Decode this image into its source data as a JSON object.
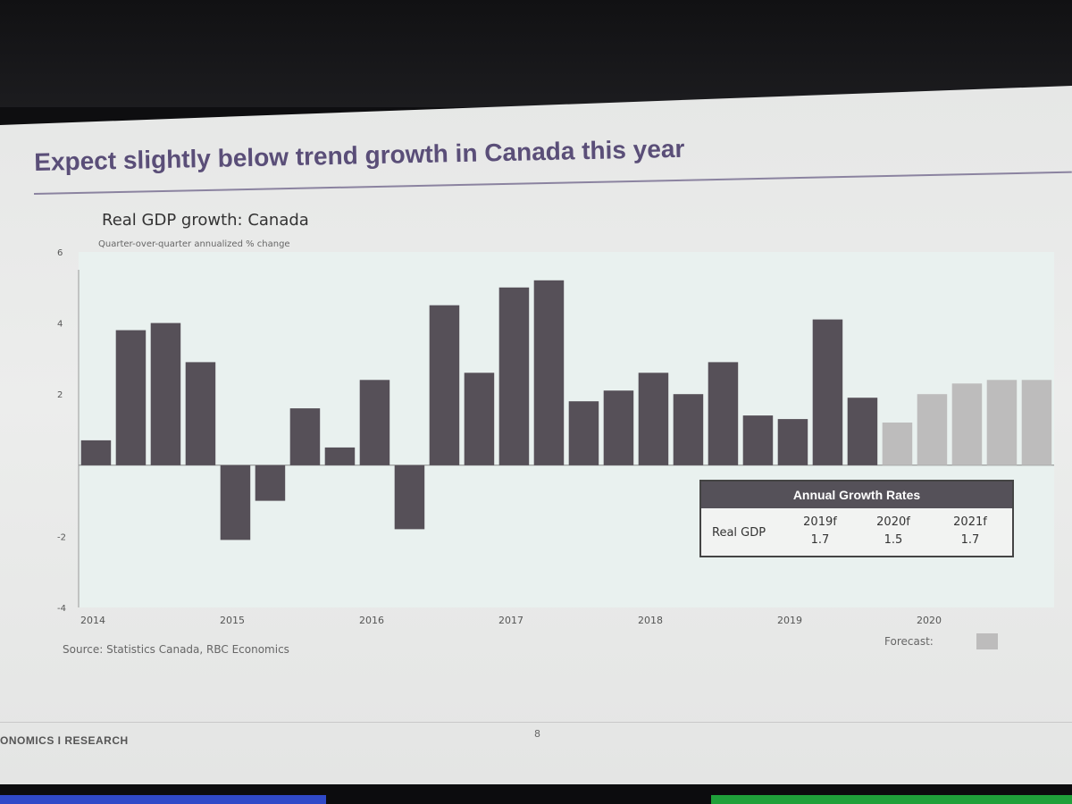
{
  "slide": {
    "title": "Expect slightly below trend growth in Canada this year",
    "source": "Source: Statistics Canada, RBC Economics",
    "forecast_label": "Forecast:",
    "footer_brand": "ONOMICS  I  RESEARCH",
    "page_number": "8"
  },
  "colors": {
    "actual": "#565058",
    "forecast": "#bdbcbc",
    "plot_bg": "#e9f1ef",
    "title": "#5a4e78"
  },
  "table": {
    "title": "Annual Growth Rates",
    "row_label": "Real GDP",
    "years": [
      "2019f",
      "2020f",
      "2021f"
    ],
    "values": [
      "1.7",
      "1.5",
      "1.7"
    ]
  },
  "chart_data": {
    "type": "bar",
    "title": "Real GDP growth: Canada",
    "subtitle": "Quarter-over-quarter annualized % change",
    "ylim": [
      -4,
      6
    ],
    "yticks": [
      6,
      4,
      2,
      -2,
      -4
    ],
    "x_year_labels": [
      "2014",
      "2015",
      "2016",
      "2017",
      "2018",
      "2019",
      "2020"
    ],
    "quarters": [
      "2014Q1",
      "2014Q2",
      "2014Q3",
      "2014Q4",
      "2015Q1",
      "2015Q2",
      "2015Q3",
      "2015Q4",
      "2016Q1",
      "2016Q2",
      "2016Q3",
      "2016Q4",
      "2017Q1",
      "2017Q2",
      "2017Q3",
      "2017Q4",
      "2018Q1",
      "2018Q2",
      "2018Q3",
      "2018Q4",
      "2019Q1",
      "2019Q2",
      "2019Q3",
      "2019Q4",
      "2020Q1",
      "2020Q2",
      "2020Q3",
      "2020Q4"
    ],
    "values": [
      0.7,
      3.8,
      4.0,
      2.9,
      -2.1,
      -1.0,
      1.6,
      0.5,
      2.4,
      -1.8,
      4.5,
      2.6,
      5.0,
      5.2,
      1.8,
      2.1,
      2.6,
      2.0,
      2.9,
      1.4,
      1.3,
      4.1,
      1.9,
      1.2,
      2.0,
      2.3,
      2.4,
      2.4
    ],
    "forecast": [
      false,
      false,
      false,
      false,
      false,
      false,
      false,
      false,
      false,
      false,
      false,
      false,
      false,
      false,
      false,
      false,
      false,
      false,
      false,
      false,
      false,
      false,
      false,
      true,
      true,
      true,
      true,
      true
    ],
    "legend": "Forecast"
  }
}
